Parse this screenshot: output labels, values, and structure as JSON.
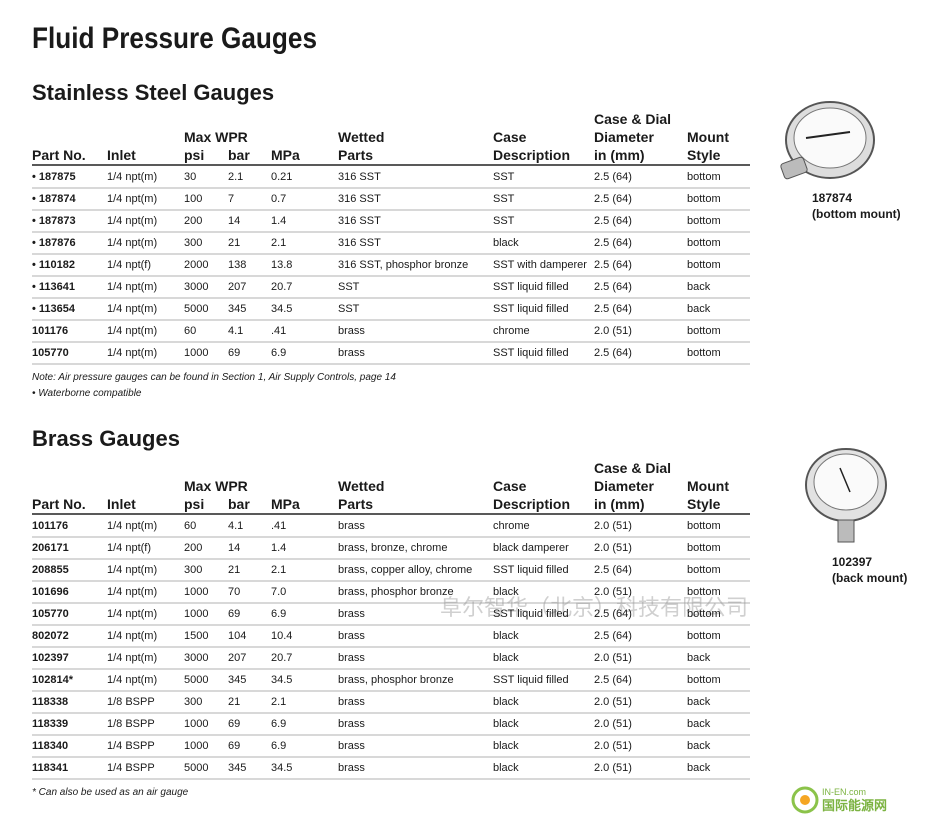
{
  "title": "Fluid Pressure Gauges",
  "sections": [
    {
      "heading": "Stainless Steel Gauges",
      "group_header": "Max WPR",
      "headers": [
        [
          "Part No."
        ],
        [
          "Inlet"
        ],
        [
          "psi"
        ],
        [
          "bar"
        ],
        [
          "MPa"
        ],
        [
          "Wetted",
          "Parts"
        ],
        [
          "Case",
          "Description"
        ],
        [
          "Case & Dial",
          "Diameter",
          "in (mm)"
        ],
        [
          "Mount",
          "Style"
        ]
      ],
      "rows": [
        [
          "• 187875",
          "1/4 npt(m)",
          "30",
          "2.1",
          "0.21",
          "316 SST",
          "SST",
          "2.5 (64)",
          "bottom"
        ],
        [
          "• 187874",
          "1/4 npt(m)",
          "100",
          "7",
          "0.7",
          "316 SST",
          "SST",
          "2.5 (64)",
          "bottom"
        ],
        [
          "• 187873",
          "1/4 npt(m)",
          "200",
          "14",
          "1.4",
          "316 SST",
          "SST",
          "2.5 (64)",
          "bottom"
        ],
        [
          "• 187876",
          "1/4 npt(m)",
          "300",
          "21",
          "2.1",
          "316 SST",
          "black",
          "2.5 (64)",
          "bottom"
        ],
        [
          "• 110182",
          "1/4 npt(f)",
          "2000",
          "138",
          "13.8",
          "316 SST, phosphor bronze",
          "SST with damperer",
          "2.5 (64)",
          "bottom"
        ],
        [
          "• 113641",
          "1/4 npt(m)",
          "3000",
          "207",
          "20.7",
          "SST",
          "SST liquid filled",
          "2.5 (64)",
          "back"
        ],
        [
          "• 113654",
          "1/4 npt(m)",
          "5000",
          "345",
          "34.5",
          "SST",
          "SST liquid filled",
          "2.5 (64)",
          "back"
        ],
        [
          "101176",
          "1/4 npt(m)",
          "60",
          "4.1",
          ".41",
          "brass",
          "chrome",
          "2.0 (51)",
          "bottom"
        ],
        [
          "105770",
          "1/4 npt(m)",
          "1000",
          "69",
          "6.9",
          "brass",
          "SST liquid filled",
          "2.5 (64)",
          "bottom"
        ]
      ],
      "notes": [
        "Note: Air pressure gauges can be found in Section 1, Air Supply Controls, page 14",
        "• Waterborne compatible"
      ],
      "image_caption": [
        "187874",
        "(bottom mount)"
      ]
    },
    {
      "heading": "Brass Gauges",
      "group_header": "Max WPR",
      "headers": [
        [
          "Part No."
        ],
        [
          "Inlet"
        ],
        [
          "psi"
        ],
        [
          "bar"
        ],
        [
          "MPa"
        ],
        [
          "Wetted",
          "Parts"
        ],
        [
          "Case",
          "Description"
        ],
        [
          "Case & Dial",
          "Diameter",
          "in (mm)"
        ],
        [
          "Mount",
          "Style"
        ]
      ],
      "rows": [
        [
          "101176",
          "1/4 npt(m)",
          "60",
          "4.1",
          ".41",
          "brass",
          "chrome",
          "2.0 (51)",
          "bottom"
        ],
        [
          "206171",
          "1/4 npt(f)",
          "200",
          "14",
          "1.4",
          "brass, bronze, chrome",
          "black damperer",
          "2.0 (51)",
          "bottom"
        ],
        [
          "208855",
          "1/4 npt(m)",
          "300",
          "21",
          "2.1",
          "brass, copper alloy, chrome",
          "SST liquid filled",
          "2.5 (64)",
          "bottom"
        ],
        [
          "101696",
          "1/4 npt(m)",
          "1000",
          "70",
          "7.0",
          "brass, phosphor bronze",
          "black",
          "2.0 (51)",
          "bottom"
        ],
        [
          "105770",
          "1/4 npt(m)",
          "1000",
          "69",
          "6.9",
          "brass",
          "SST liquid filled",
          "2.5 (64)",
          "bottom"
        ],
        [
          "802072",
          "1/4 npt(m)",
          "1500",
          "104",
          "10.4",
          "brass",
          "black",
          "2.5 (64)",
          "bottom"
        ],
        [
          "102397",
          "1/4 npt(m)",
          "3000",
          "207",
          "20.7",
          "brass",
          "black",
          "2.0 (51)",
          "back"
        ],
        [
          "102814*",
          "1/4 npt(m)",
          "5000",
          "345",
          "34.5",
          "brass, phosphor bronze",
          "SST liquid filled",
          "2.5 (64)",
          "bottom"
        ],
        [
          "118338",
          "1/8 BSPP",
          "300",
          "21",
          "2.1",
          "brass",
          "black",
          "2.0 (51)",
          "back"
        ],
        [
          "118339",
          "1/8 BSPP",
          "1000",
          "69",
          "6.9",
          "brass",
          "black",
          "2.0 (51)",
          "back"
        ],
        [
          "118340",
          "1/4 BSPP",
          "1000",
          "69",
          "6.9",
          "brass",
          "black",
          "2.0 (51)",
          "back"
        ],
        [
          "118341",
          "1/4 BSPP",
          "5000",
          "345",
          "34.5",
          "brass",
          "black",
          "2.0 (51)",
          "back"
        ]
      ],
      "notes": [
        "* Can also be used as an air gauge"
      ],
      "image_caption": [
        "102397",
        "(back mount)"
      ]
    }
  ],
  "watermark": "阜尔智华（北京）科技有限公司",
  "logo": {
    "site": "IN-EN.com",
    "name": "国际能源网"
  }
}
